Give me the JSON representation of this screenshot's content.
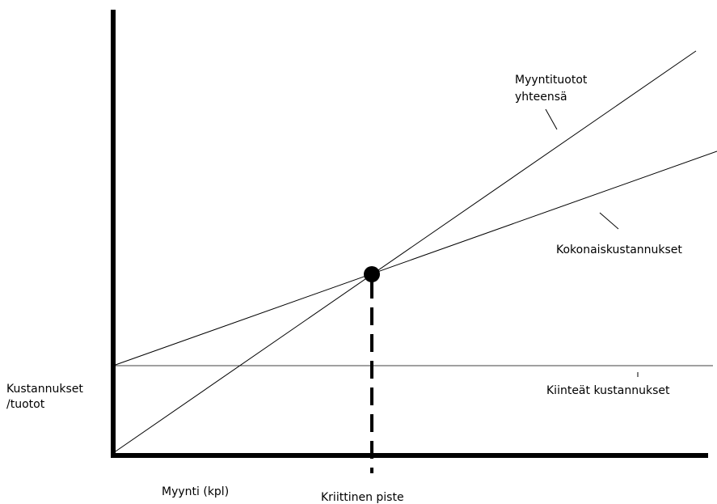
{
  "diagram": {
    "type": "break-even chart",
    "y_axis_label": [
      "Kustannukset",
      "/tuotot"
    ],
    "x_axis_label": "Myynti (kpl)",
    "break_even_label": "Kriittinen piste",
    "lines": {
      "revenue": [
        "Myyntituotot",
        "yhteensä"
      ],
      "total_costs": "Kokonaiskustannukset",
      "fixed_costs": "Kiinteät kustannukset"
    },
    "colors": {
      "line": "#000000",
      "background": "#ffffff"
    },
    "grid": false
  }
}
